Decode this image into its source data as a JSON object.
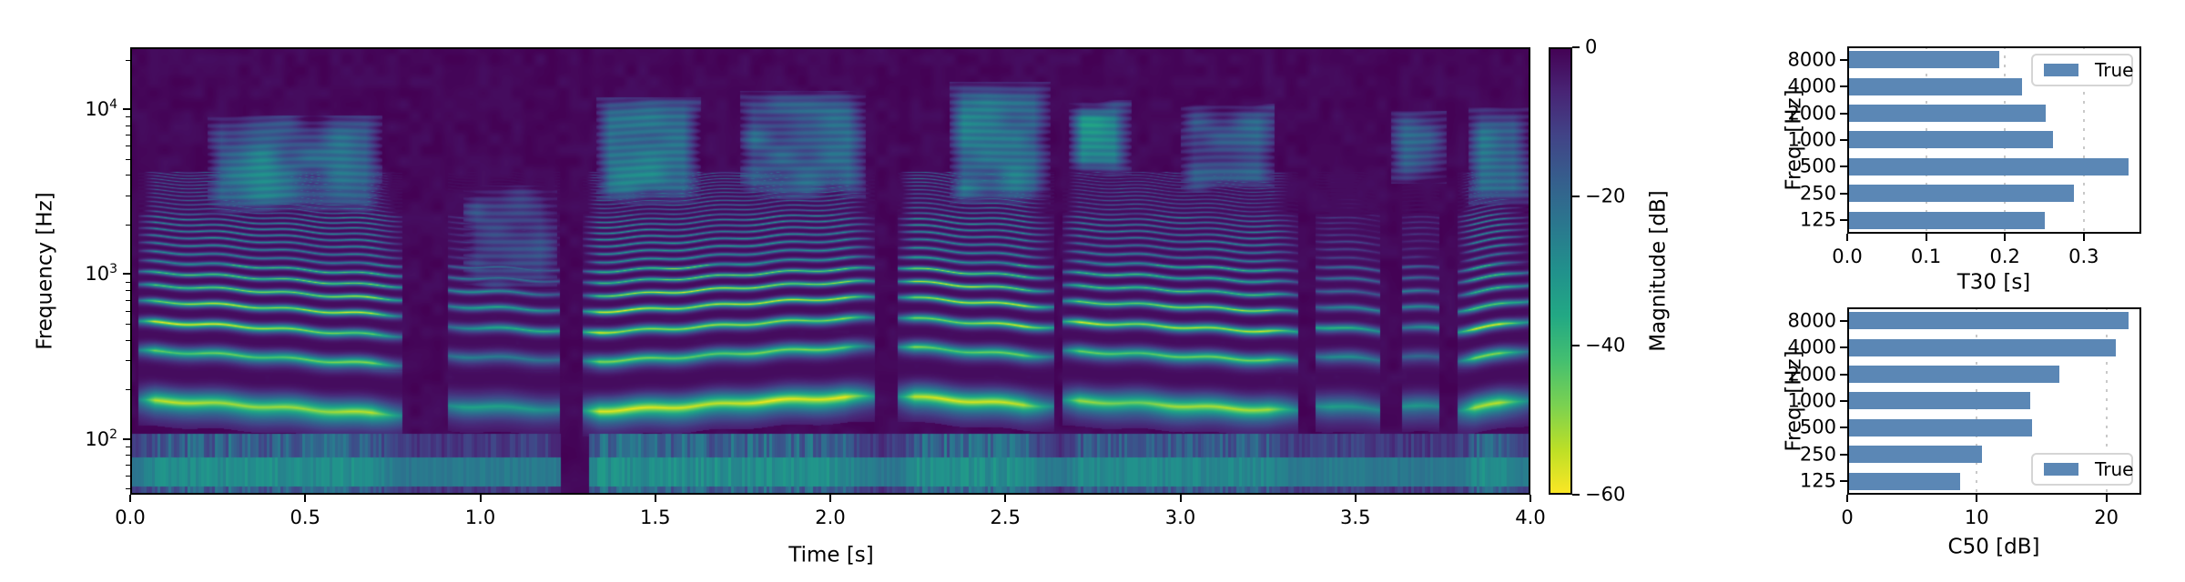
{
  "colors": {
    "bar": "#5b87b5",
    "background": "#ffffff",
    "axis": "#000000",
    "grid": "#c9c9c9",
    "legend_border": "#d5d5d5"
  },
  "viridis": [
    {
      "t": 0.0,
      "c": "#440154"
    },
    {
      "t": 0.1,
      "c": "#482475"
    },
    {
      "t": 0.2,
      "c": "#414487"
    },
    {
      "t": 0.3,
      "c": "#355f8d"
    },
    {
      "t": 0.4,
      "c": "#2a788e"
    },
    {
      "t": 0.5,
      "c": "#21918c"
    },
    {
      "t": 0.6,
      "c": "#22a884"
    },
    {
      "t": 0.7,
      "c": "#44bf70"
    },
    {
      "t": 0.8,
      "c": "#7ad151"
    },
    {
      "t": 0.9,
      "c": "#bddf26"
    },
    {
      "t": 1.0,
      "c": "#fde725"
    }
  ],
  "chart_data": [
    {
      "type": "heatmap",
      "subtype": "speech-spectrogram",
      "xlabel": "Time [s]",
      "ylabel": "Frequency [Hz]",
      "x_range": [
        0.0,
        4.0
      ],
      "xticks": [
        {
          "v": 0.0,
          "label": "0.0"
        },
        {
          "v": 0.5,
          "label": "0.5"
        },
        {
          "v": 1.0,
          "label": "1.0"
        },
        {
          "v": 1.5,
          "label": "1.5"
        },
        {
          "v": 2.0,
          "label": "2.0"
        },
        {
          "v": 2.5,
          "label": "2.5"
        },
        {
          "v": 3.0,
          "label": "3.0"
        },
        {
          "v": 3.5,
          "label": "3.5"
        },
        {
          "v": 4.0,
          "label": "4.0"
        }
      ],
      "y_scale": "log",
      "y_range_hz": [
        46,
        23750
      ],
      "yticks": [
        {
          "v": 100,
          "base": "10",
          "exp": "2"
        },
        {
          "v": 1000,
          "base": "10",
          "exp": "3"
        },
        {
          "v": 10000,
          "base": "10",
          "exp": "4"
        }
      ],
      "y_minor_ticks": [
        50,
        60,
        70,
        80,
        90,
        200,
        300,
        400,
        500,
        600,
        700,
        800,
        900,
        2000,
        3000,
        4000,
        5000,
        6000,
        7000,
        8000,
        9000,
        20000
      ],
      "colormap": "viridis",
      "colorbar": {
        "label": "Magnitude [dB]",
        "range": [
          -60,
          0
        ],
        "ticks": [
          {
            "v": 0,
            "label": "0"
          },
          {
            "v": -20,
            "label": "−20"
          },
          {
            "v": -40,
            "label": "−40"
          },
          {
            "v": -60,
            "label": "−60"
          }
        ]
      },
      "model": {
        "f_min": 46,
        "f_max": 23750,
        "db_min": -60,
        "db_max": 0,
        "low_band_gaps": [
          [
            1.23,
            1.31
          ]
        ],
        "segments": [
          {
            "t0": 0.02,
            "t1": 0.78,
            "level": 0.95,
            "f0": [
              172,
              142
            ],
            "f1": [
              480,
              780
            ],
            "clouds": [
              {
                "t0": 0.22,
                "t1": 0.72,
                "flo": 2600,
                "fhi": 8500,
                "level": 0.5
              }
            ]
          },
          {
            "t0": 0.9,
            "t1": 1.24,
            "level": 0.2,
            "f0": [
              160,
              150
            ],
            "f1": [
              700,
              500
            ],
            "clouds": [
              {
                "t0": 0.95,
                "t1": 1.22,
                "flo": 900,
                "fhi": 3200,
                "level": 0.22
              }
            ]
          },
          {
            "t0": 1.29,
            "t1": 2.13,
            "level": 1.0,
            "f0": [
              148,
              182
            ],
            "f1": [
              520,
              900
            ],
            "clouds": [
              {
                "t0": 1.33,
                "t1": 1.63,
                "flo": 3000,
                "fhi": 11000,
                "level": 0.6
              },
              {
                "t0": 1.74,
                "t1": 2.1,
                "flo": 3200,
                "fhi": 12000,
                "level": 0.5
              }
            ]
          },
          {
            "t0": 2.19,
            "t1": 2.64,
            "level": 1.0,
            "f0": [
              185,
              158
            ],
            "f1": [
              900,
              550
            ],
            "clouds": [
              {
                "t0": 2.34,
                "t1": 2.63,
                "flo": 3000,
                "fhi": 13500,
                "level": 0.65
              }
            ]
          },
          {
            "t0": 2.66,
            "t1": 3.34,
            "level": 0.82,
            "f0": [
              170,
              150
            ],
            "f1": [
              600,
              450
            ],
            "clouds": [
              {
                "t0": 2.68,
                "t1": 2.86,
                "flo": 4500,
                "fhi": 10500,
                "level": 0.75
              },
              {
                "t0": 3.0,
                "t1": 3.27,
                "flo": 3500,
                "fhi": 10000,
                "level": 0.45
              }
            ]
          },
          {
            "t0": 3.38,
            "t1": 3.58,
            "level": 0.26,
            "f0": [
              162,
              150
            ],
            "f1": [
              500,
              400
            ],
            "clouds": []
          },
          {
            "t0": 3.62,
            "t1": 3.76,
            "level": 0.12,
            "f0": [
              158,
              155
            ],
            "f1": [
              600,
              500
            ],
            "clouds": [
              {
                "t0": 3.6,
                "t1": 3.76,
                "flo": 4000,
                "fhi": 9000,
                "level": 0.28
              }
            ]
          },
          {
            "t0": 3.79,
            "t1": 4.0,
            "level": 0.92,
            "f0": [
              150,
              176
            ],
            "f1": [
              420,
              700
            ],
            "clouds": [
              {
                "t0": 3.82,
                "t1": 4.0,
                "flo": 3000,
                "fhi": 9500,
                "level": 0.5
              }
            ]
          }
        ]
      }
    },
    {
      "type": "bar",
      "orientation": "horizontal",
      "xlabel": "T30 [s]",
      "ylabel": "Freq. [Hz]",
      "categories": [
        "8000",
        "4000",
        "2000",
        "1000",
        "500",
        "250",
        "125"
      ],
      "values": [
        0.193,
        0.222,
        0.252,
        0.261,
        0.357,
        0.288,
        0.251
      ],
      "xlim": [
        0,
        0.373
      ],
      "xticks": [
        {
          "v": 0.0,
          "label": "0.0"
        },
        {
          "v": 0.1,
          "label": "0.1"
        },
        {
          "v": 0.2,
          "label": "0.2"
        },
        {
          "v": 0.3,
          "label": "0.3"
        }
      ],
      "grid": "dotted-vertical",
      "legend": {
        "label": "True",
        "position": "upper-right"
      }
    },
    {
      "type": "bar",
      "orientation": "horizontal",
      "xlabel": "C50 [dB]",
      "ylabel": "Freq. [Hz]",
      "categories": [
        "8000",
        "4000",
        "2000",
        "1000",
        "500",
        "250",
        "125"
      ],
      "values": [
        21.7,
        20.7,
        16.4,
        14.1,
        14.3,
        10.4,
        8.7
      ],
      "xlim": [
        0,
        22.7
      ],
      "xticks": [
        {
          "v": 0,
          "label": "0"
        },
        {
          "v": 10,
          "label": "10"
        },
        {
          "v": 20,
          "label": "20"
        }
      ],
      "grid": "dotted-vertical",
      "legend": {
        "label": "True",
        "position": "lower-right"
      }
    }
  ]
}
